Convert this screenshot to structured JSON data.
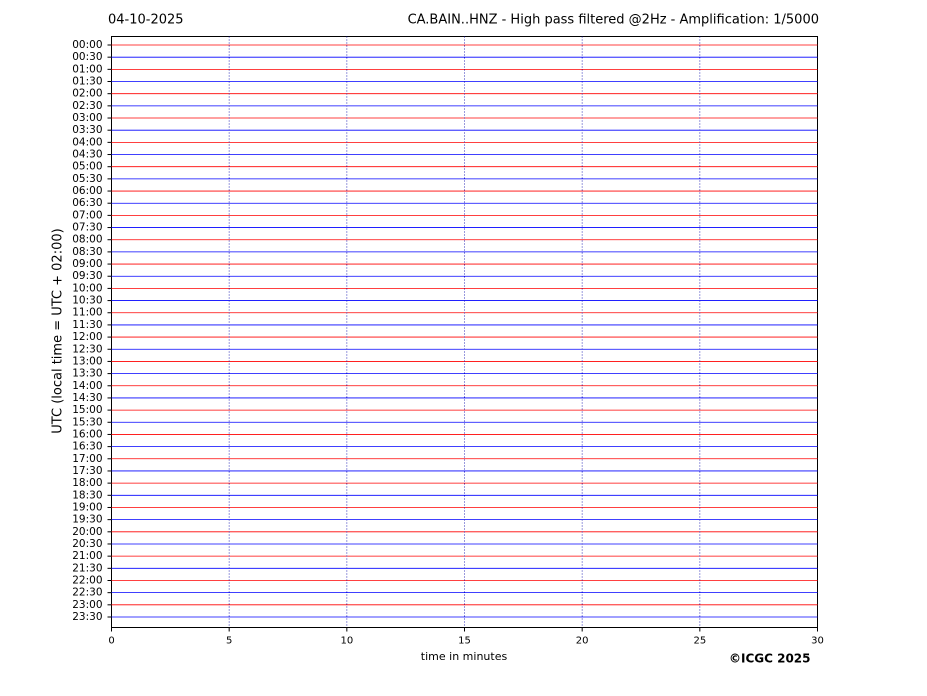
{
  "chart_data": {
    "type": "helicorder",
    "date": "04-10-2025",
    "title": "CA.BAIN..HNZ - High pass filtered @2Hz - Amplification: 1/5000",
    "y_label": "UTC (local time = UTC + 02:00)",
    "x_label": "time in minutes",
    "credit": "©ICGC 2025",
    "xlim": [
      0,
      30
    ],
    "xticks": [
      0,
      5,
      10,
      15,
      20,
      25,
      30
    ],
    "grid": true,
    "trace_colors": [
      "#ff0000",
      "#0000ff"
    ],
    "grid_color": "#0000aa",
    "categories": [
      "00:00",
      "00:30",
      "01:00",
      "01:30",
      "02:00",
      "02:30",
      "03:00",
      "03:30",
      "04:00",
      "04:30",
      "05:00",
      "05:30",
      "06:00",
      "06:30",
      "07:00",
      "07:30",
      "08:00",
      "08:30",
      "09:00",
      "09:30",
      "10:00",
      "10:30",
      "11:00",
      "11:30",
      "12:00",
      "12:30",
      "13:00",
      "13:30",
      "14:00",
      "14:30",
      "15:00",
      "15:30",
      "16:00",
      "16:30",
      "17:00",
      "17:30",
      "18:00",
      "18:30",
      "19:00",
      "19:30",
      "20:00",
      "20:30",
      "21:00",
      "21:30",
      "22:00",
      "22:30",
      "23:00",
      "23:30"
    ]
  }
}
